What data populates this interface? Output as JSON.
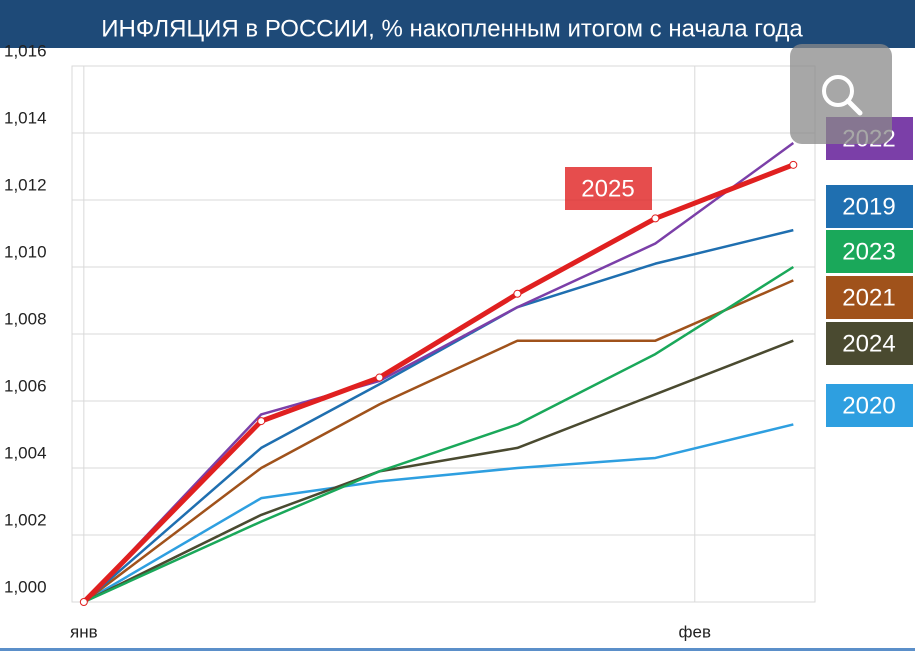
{
  "chart_data": {
    "type": "line",
    "title": "ИНФЛЯЦИЯ в РОССИИ, % накопленным итогом с начала года",
    "x": [
      0,
      9,
      15,
      22,
      29,
      36
    ],
    "xlim": [
      -0.6,
      37.1
    ],
    "xticks": [
      {
        "value": 0,
        "label": "янв"
      },
      {
        "value": 31,
        "label": "фев"
      }
    ],
    "ylim": [
      1.0,
      1.016
    ],
    "yticks": [
      {
        "value": 1.0,
        "label": "1,000"
      },
      {
        "value": 1.002,
        "label": "1,002"
      },
      {
        "value": 1.004,
        "label": "1,004"
      },
      {
        "value": 1.006,
        "label": "1,006"
      },
      {
        "value": 1.008,
        "label": "1,008"
      },
      {
        "value": 1.01,
        "label": "1,010"
      },
      {
        "value": 1.012,
        "label": "1,012"
      },
      {
        "value": 1.014,
        "label": "1,014"
      },
      {
        "value": 1.016,
        "label": "1,016"
      }
    ],
    "grid": true,
    "series": [
      {
        "name": "2020",
        "color": "#2e9fe0",
        "values": [
          1.0,
          1.0031,
          1.0036,
          1.004,
          1.0043,
          1.0053
        ]
      },
      {
        "name": "2024",
        "color": "#4a4a30",
        "values": [
          1.0,
          1.0026,
          1.0039,
          1.0046,
          1.0062,
          1.0078
        ]
      },
      {
        "name": "2021",
        "color": "#a0521b",
        "values": [
          1.0,
          1.004,
          1.0059,
          1.0078,
          1.0078,
          1.0096
        ]
      },
      {
        "name": "2023",
        "color": "#1aa85a",
        "values": [
          1.0,
          1.0024,
          1.0039,
          1.0053,
          1.0074,
          1.01
        ]
      },
      {
        "name": "2019",
        "color": "#1f6fb0",
        "values": [
          1.0,
          1.0046,
          1.0065,
          1.0088,
          1.0101,
          1.0111
        ]
      },
      {
        "name": "2022",
        "color": "#7b3fa8",
        "values": [
          1.0,
          1.0056,
          1.0066,
          1.0088,
          1.0107,
          1.0137
        ]
      },
      {
        "name": "2025",
        "color": "#e02020",
        "markers": true,
        "values": [
          1.0,
          1.0054,
          1.0067,
          1.0092,
          1.01145,
          1.01305
        ]
      }
    ]
  }
}
